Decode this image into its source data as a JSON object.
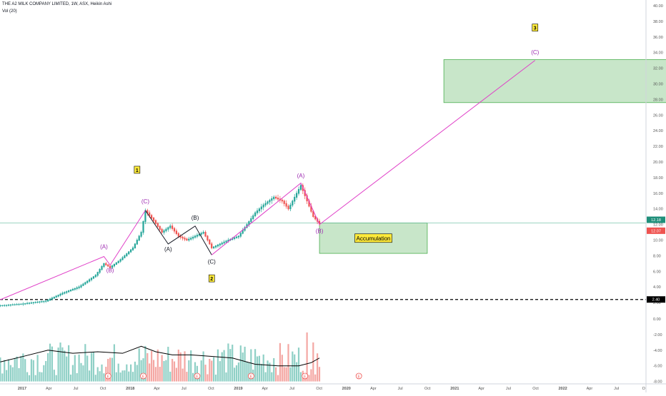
{
  "header": {
    "title": "THE A2 MILK COMPANY LIMITED, 1W, ASX, Heikin Ashi",
    "volume_label": "Vol (20)"
  },
  "chart_data": {
    "type": "candlestick",
    "symbol": "THE A2 MILK COMPANY LIMITED",
    "interval": "1W",
    "exchange": "ASX",
    "style": "Heikin Ashi",
    "ylim": [
      0,
      40
    ],
    "y_ticks": [
      2.0,
      4.0,
      6.0,
      8.0,
      10.0,
      12.0,
      14.0,
      16.0,
      18.0,
      20.0,
      22.0,
      24.0,
      26.0,
      28.0,
      30.0,
      32.0,
      34.0,
      36.0,
      38.0,
      40.0
    ],
    "y_ticks_lower": [
      0.0,
      -2.0,
      -4.0,
      -6.0,
      -8.0
    ],
    "x_ticks": [
      "2017",
      "Apr",
      "Jul",
      "Oct",
      "2018",
      "Apr",
      "Jul",
      "Oct",
      "2019",
      "Apr",
      "Jul",
      "Oct",
      "2020",
      "Apr",
      "Jul",
      "Oct",
      "2021",
      "Apr",
      "Jul",
      "Oct",
      "2022",
      "Apr",
      "Jul",
      "O"
    ],
    "price_labels": {
      "current": "12.18",
      "previous": "12.07",
      "support": "2.40"
    },
    "horizontal_lines": [
      {
        "price": 12.18,
        "style": "solid",
        "color": "#7cc6ad"
      },
      {
        "price": 2.4,
        "style": "dashed",
        "color": "#000000"
      }
    ],
    "price_path": [
      {
        "date": "2016-10-24",
        "price": 1.6
      },
      {
        "date": "2017-01-02",
        "price": 1.8
      },
      {
        "date": "2017-03-27",
        "price": 2.2
      },
      {
        "date": "2017-05-22",
        "price": 3.2
      },
      {
        "date": "2017-07-17",
        "price": 4.0
      },
      {
        "date": "2017-09-11",
        "price": 5.5
      },
      {
        "date": "2017-10-09",
        "price": 7.0
      },
      {
        "date": "2017-10-30",
        "price": 6.5
      },
      {
        "date": "2017-12-04",
        "price": 7.5
      },
      {
        "date": "2018-01-15",
        "price": 9.0
      },
      {
        "date": "2018-02-12",
        "price": 11.0
      },
      {
        "date": "2018-02-26",
        "price": 13.8
      },
      {
        "date": "2018-03-26",
        "price": 12.5
      },
      {
        "date": "2018-04-23",
        "price": 11.0
      },
      {
        "date": "2018-05-21",
        "price": 11.8
      },
      {
        "date": "2018-06-18",
        "price": 10.5
      },
      {
        "date": "2018-07-16",
        "price": 10.0
      },
      {
        "date": "2018-08-13",
        "price": 10.5
      },
      {
        "date": "2018-09-10",
        "price": 11.0
      },
      {
        "date": "2018-10-08",
        "price": 9.0
      },
      {
        "date": "2018-11-05",
        "price": 9.5
      },
      {
        "date": "2018-12-03",
        "price": 10.0
      },
      {
        "date": "2019-01-07",
        "price": 10.5
      },
      {
        "date": "2019-02-04",
        "price": 12.0
      },
      {
        "date": "2019-03-04",
        "price": 13.5
      },
      {
        "date": "2019-04-01",
        "price": 14.5
      },
      {
        "date": "2019-05-06",
        "price": 15.5
      },
      {
        "date": "2019-06-03",
        "price": 15.0
      },
      {
        "date": "2019-06-24",
        "price": 14.0
      },
      {
        "date": "2019-07-15",
        "price": 15.5
      },
      {
        "date": "2019-08-05",
        "price": 17.0
      },
      {
        "date": "2019-08-26",
        "price": 15.0
      },
      {
        "date": "2019-09-16",
        "price": 13.0
      },
      {
        "date": "2019-10-07",
        "price": 12.1
      }
    ],
    "volume_profile": [
      {
        "date": "2016-10-24",
        "value": -5.5
      },
      {
        "date": "2017-01-09",
        "value": -4.8
      },
      {
        "date": "2017-04-03",
        "value": -4.0
      },
      {
        "date": "2017-06-26",
        "value": -4.4
      },
      {
        "date": "2017-09-18",
        "value": -4.2
      },
      {
        "date": "2017-12-11",
        "value": -4.4
      },
      {
        "date": "2018-02-12",
        "value": -3.5
      },
      {
        "date": "2018-04-02",
        "value": -4.2
      },
      {
        "date": "2018-05-28",
        "value": -4.6
      },
      {
        "date": "2018-07-30",
        "value": -4.6
      },
      {
        "date": "2018-10-08",
        "value": -4.8
      },
      {
        "date": "2018-12-17",
        "value": -5.0
      },
      {
        "date": "2019-03-04",
        "value": -5.8
      },
      {
        "date": "2019-05-20",
        "value": -6.0
      },
      {
        "date": "2019-07-29",
        "value": -6.0
      },
      {
        "date": "2019-09-09",
        "value": -5.6
      },
      {
        "date": "2019-10-07",
        "value": -5.0
      }
    ],
    "wave_lines": [
      {
        "color": "#e040c8",
        "points": [
          {
            "date": "2016-09-05",
            "price": 1.6
          },
          {
            "date": "2017-10-09",
            "price": 7.9
          },
          {
            "date": "2017-10-30",
            "price": 6.8
          },
          {
            "date": "2018-02-26",
            "price": 13.8
          }
        ]
      },
      {
        "color": "#131722",
        "points": [
          {
            "date": "2018-02-26",
            "price": 13.8
          },
          {
            "date": "2018-05-14",
            "price": 9.5
          },
          {
            "date": "2018-08-13",
            "price": 11.8
          },
          {
            "date": "2018-10-08",
            "price": 8.1
          }
        ]
      },
      {
        "color": "#e040c8",
        "points": [
          {
            "date": "2018-10-08",
            "price": 8.1
          },
          {
            "date": "2019-08-05",
            "price": 17.3
          },
          {
            "date": "2019-10-07",
            "price": 12.0
          },
          {
            "date": "2021-10-04",
            "price": 33.0
          }
        ]
      }
    ],
    "wave_labels": [
      {
        "text": "(A)",
        "date": "2017-10-09",
        "price": 8.9,
        "color": "#9c27b0"
      },
      {
        "text": "(B)",
        "date": "2017-10-30",
        "price": 5.9,
        "color": "#9c27b0"
      },
      {
        "text": "(C)",
        "date": "2018-02-26",
        "price": 14.7,
        "color": "#9c27b0"
      },
      {
        "text": "(A)",
        "date": "2018-05-14",
        "price": 8.6,
        "color": "#131722"
      },
      {
        "text": "(B)",
        "date": "2018-08-13",
        "price": 12.6,
        "color": "#131722"
      },
      {
        "text": "(C)",
        "date": "2018-10-08",
        "price": 7.0,
        "color": "#131722"
      },
      {
        "text": "(A)",
        "date": "2019-08-05",
        "price": 18.0,
        "color": "#9c27b0"
      },
      {
        "text": "(B)",
        "date": "2019-10-07",
        "price": 10.9,
        "color": "#9c27b0"
      },
      {
        "text": "(C)",
        "date": "2021-10-04",
        "price": 33.8,
        "color": "#9c27b0"
      }
    ],
    "wave_numbers": [
      {
        "text": "1",
        "date": "2018-01-29",
        "price": 19.0
      },
      {
        "text": "2",
        "date": "2018-10-08",
        "price": 5.1
      },
      {
        "text": "3",
        "date": "2021-10-04",
        "price": 37.2
      }
    ],
    "zones": [
      {
        "name": "target",
        "date_from": "2020-11-30",
        "date_to": "2023-03-27",
        "price_from": 27.6,
        "price_to": 33.1
      },
      {
        "name": "accumulation",
        "label": "Accumulation",
        "date_from": "2019-10-07",
        "date_to": "2020-10-05",
        "price_from": 8.3,
        "price_to": 12.2
      }
    ],
    "event_markers": [
      "2017-10-23",
      "2018-02-19",
      "2018-08-20",
      "2019-02-18",
      "2019-08-19",
      "2020-02-17"
    ],
    "colors": {
      "up": "#26a69a",
      "down": "#ef5350",
      "wave_magenta": "#e040c8",
      "zone_fill": "#c8e6c9",
      "zone_border": "#4caf50",
      "label_yellow": "#ffeb3b",
      "price_line": "#7cc6ad"
    },
    "grid": false
  }
}
